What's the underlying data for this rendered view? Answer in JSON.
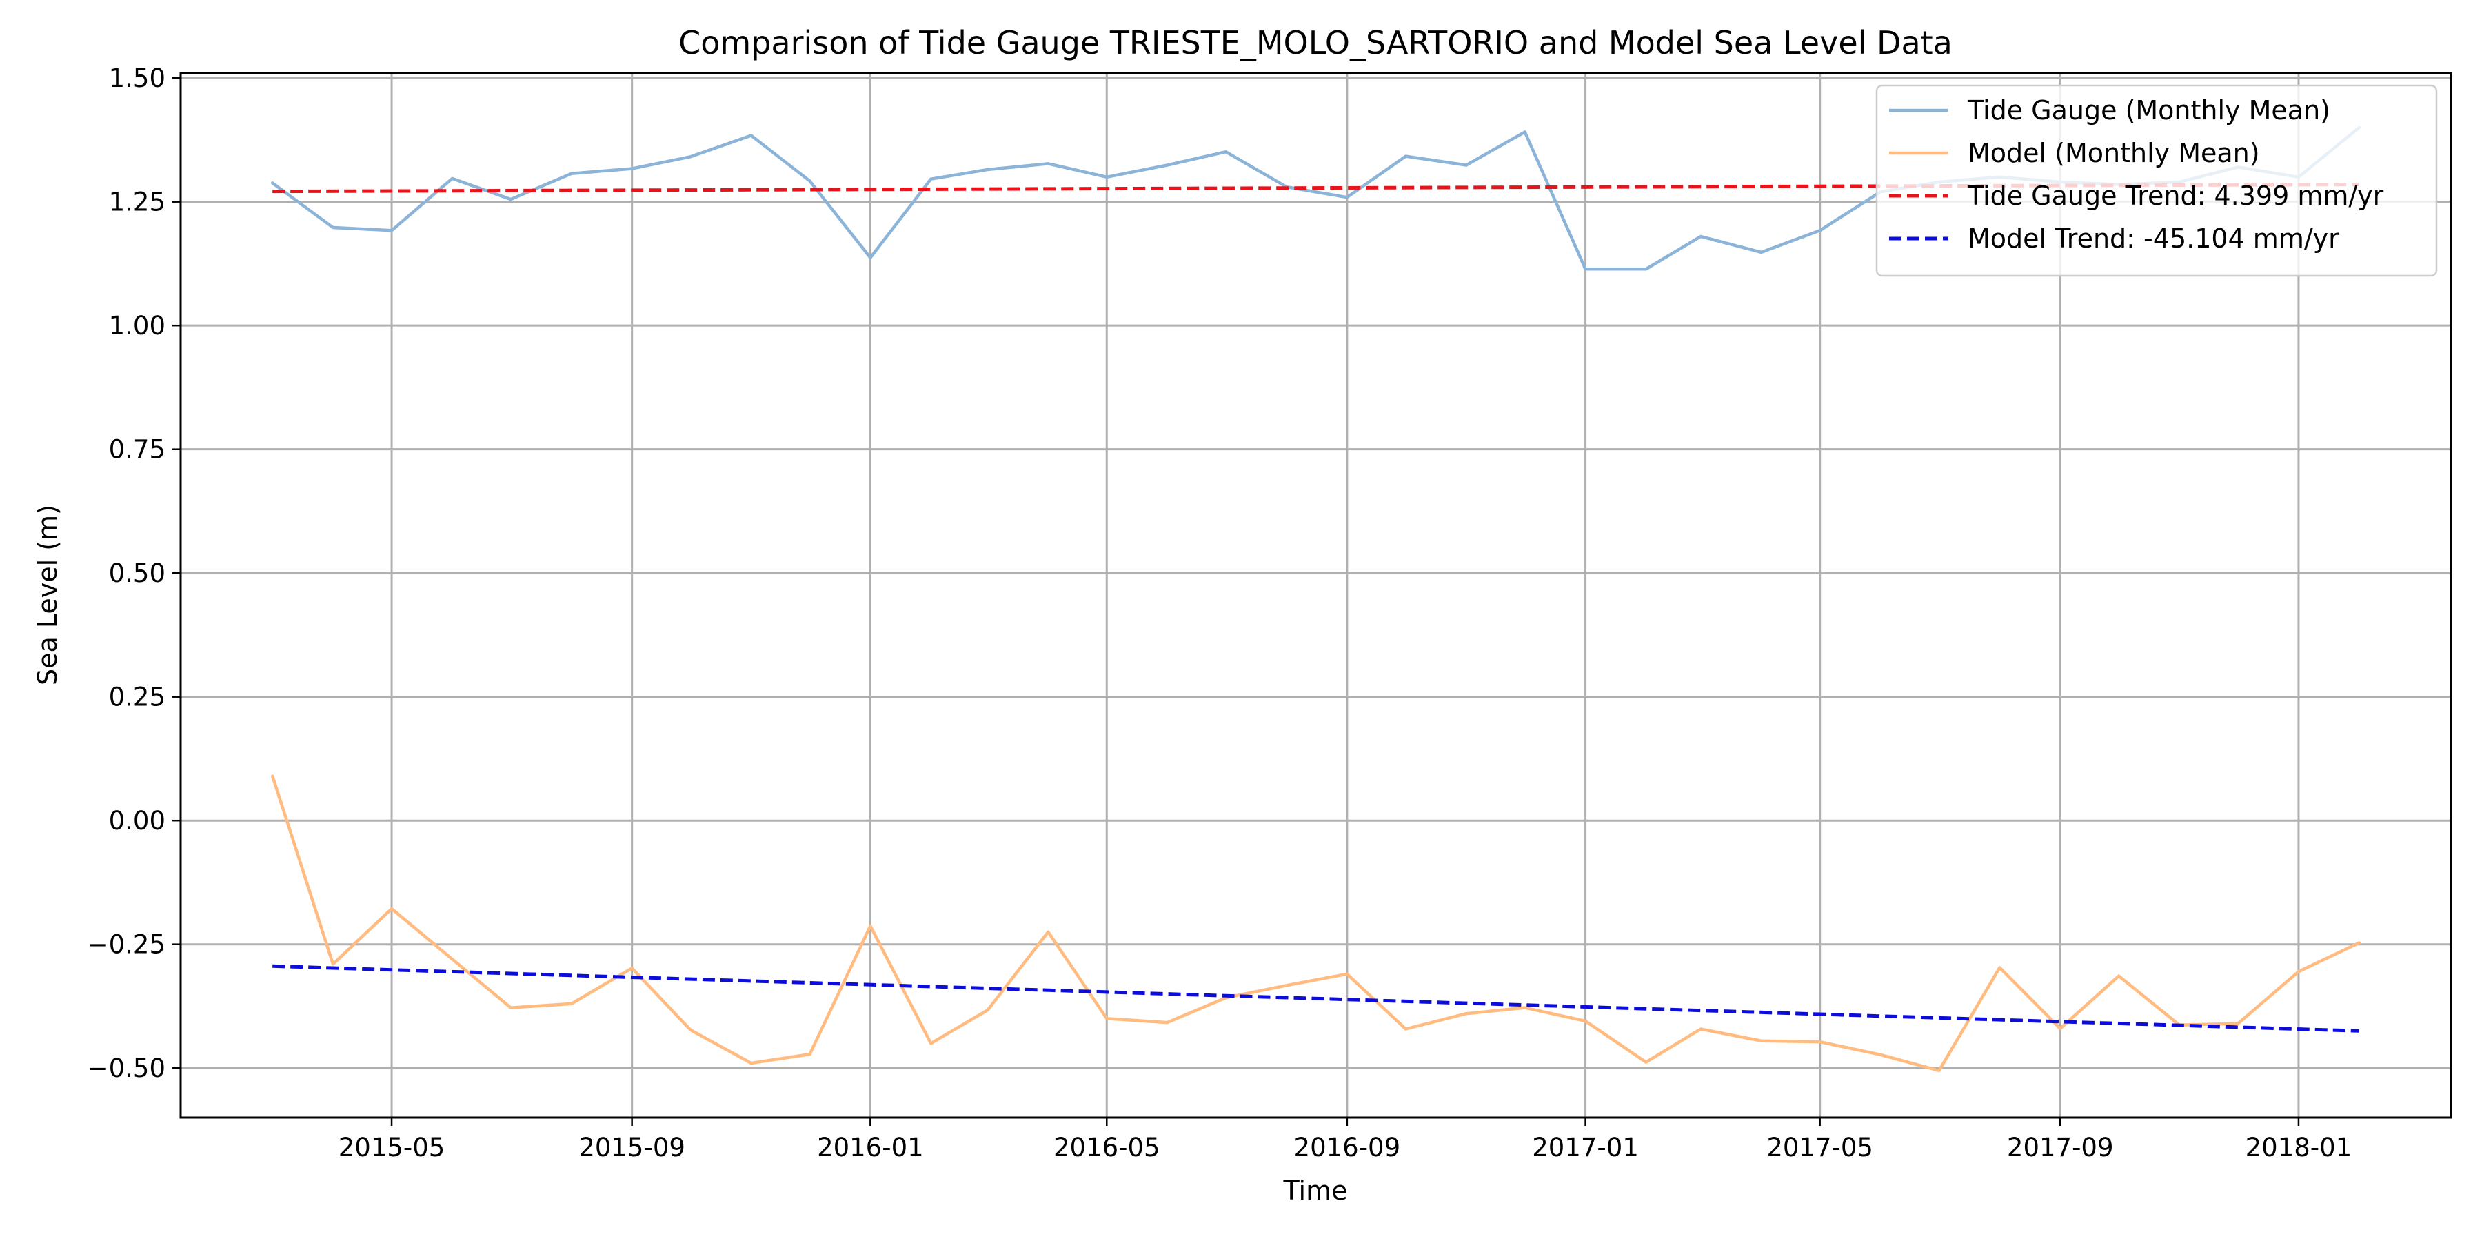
{
  "chart_data": {
    "type": "line",
    "title": "Comparison of Tide Gauge TRIESTE_MOLO_SARTORIO and Model Sea Level Data",
    "xlabel": "Time",
    "ylabel": "Sea Level (m)",
    "xlim": [
      "2015-01-13",
      "2018-03-20"
    ],
    "ylim": [
      -0.6,
      1.51
    ],
    "grid": true,
    "legend_position": "top-right",
    "x_ticks": [
      {
        "date": "2015-05-01",
        "label": "2015-05"
      },
      {
        "date": "2015-09-01",
        "label": "2015-09"
      },
      {
        "date": "2016-01-01",
        "label": "2016-01"
      },
      {
        "date": "2016-05-01",
        "label": "2016-05"
      },
      {
        "date": "2016-09-01",
        "label": "2016-09"
      },
      {
        "date": "2017-01-01",
        "label": "2017-01"
      },
      {
        "date": "2017-05-01",
        "label": "2017-05"
      },
      {
        "date": "2017-09-01",
        "label": "2017-09"
      },
      {
        "date": "2018-01-01",
        "label": "2018-01"
      }
    ],
    "y_ticks": [
      {
        "value": -0.5,
        "label": "−0.50"
      },
      {
        "value": -0.25,
        "label": "−0.25"
      },
      {
        "value": 0.0,
        "label": "0.00"
      },
      {
        "value": 0.25,
        "label": "0.25"
      },
      {
        "value": 0.5,
        "label": "0.50"
      },
      {
        "value": 0.75,
        "label": "0.75"
      },
      {
        "value": 1.0,
        "label": "1.00"
      },
      {
        "value": 1.25,
        "label": "1.25"
      },
      {
        "value": 1.5,
        "label": "1.50"
      }
    ],
    "x": [
      "2015-03-01",
      "2015-04-01",
      "2015-05-01",
      "2015-06-01",
      "2015-07-01",
      "2015-08-01",
      "2015-09-01",
      "2015-10-01",
      "2015-11-01",
      "2015-12-01",
      "2016-01-01",
      "2016-02-01",
      "2016-03-01",
      "2016-04-01",
      "2016-05-01",
      "2016-06-01",
      "2016-07-01",
      "2016-08-01",
      "2016-09-01",
      "2016-10-01",
      "2016-11-01",
      "2016-12-01",
      "2017-01-01",
      "2017-02-01",
      "2017-03-01",
      "2017-04-01",
      "2017-05-01",
      "2017-06-01",
      "2017-07-01",
      "2017-08-01",
      "2017-09-01",
      "2017-10-01",
      "2017-11-01",
      "2017-12-01",
      "2018-01-01",
      "2018-02-01"
    ],
    "series": [
      {
        "name": "Tide Gauge (Monthly Mean)",
        "color": "#8cb4d8",
        "style": "solid",
        "values": [
          1.288,
          1.198,
          1.192,
          1.297,
          1.255,
          1.307,
          1.317,
          1.341,
          1.384,
          1.292,
          1.137,
          1.296,
          1.315,
          1.327,
          1.3,
          1.324,
          1.351,
          1.28,
          1.259,
          1.342,
          1.324,
          1.391,
          1.114,
          1.114,
          1.18,
          1.148,
          1.192,
          1.27,
          1.29,
          1.3,
          1.29,
          1.285,
          1.29,
          1.32,
          1.3,
          1.4
        ]
      },
      {
        "name": "Model (Monthly Mean)",
        "color": "#ffbb80",
        "style": "solid",
        "values": [
          0.09,
          -0.29,
          -0.178,
          -0.28,
          -0.378,
          -0.37,
          -0.298,
          -0.423,
          -0.49,
          -0.472,
          -0.213,
          -0.45,
          -0.383,
          -0.225,
          -0.4,
          -0.408,
          -0.358,
          -0.333,
          -0.31,
          -0.421,
          -0.39,
          -0.378,
          -0.405,
          -0.488,
          -0.421,
          -0.445,
          -0.447,
          -0.473,
          -0.505,
          -0.297,
          -0.42,
          -0.314,
          -0.413,
          -0.41,
          -0.305,
          -0.247
        ]
      },
      {
        "name": "Tide Gauge Trend: 4.399 mm/yr",
        "color": "#e8141c",
        "style": "dashed",
        "x": [
          "2015-03-01",
          "2018-02-01"
        ],
        "values": [
          1.271,
          1.285
        ]
      },
      {
        "name": "Model Trend: -45.104 mm/yr",
        "color": "#0d0ddb",
        "style": "dashed",
        "x": [
          "2015-03-01",
          "2018-02-01"
        ],
        "values": [
          -0.294,
          -0.425
        ]
      }
    ]
  }
}
